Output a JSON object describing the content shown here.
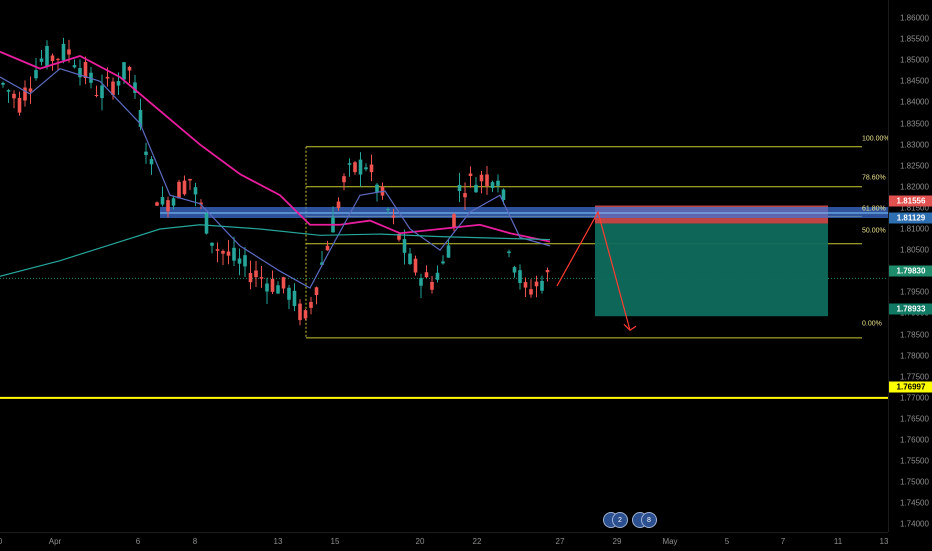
{
  "price_axis": {
    "ticks": [
      "1.86000",
      "1.85500",
      "1.85000",
      "1.84500",
      "1.84000",
      "1.83500",
      "1.83000",
      "1.82500",
      "1.82000",
      "1.81500",
      "1.81000",
      "1.80500",
      "1.80000",
      "1.79500",
      "1.79000",
      "1.78500",
      "1.78000",
      "1.77500",
      "1.77000",
      "1.76500",
      "1.76000",
      "1.75500",
      "1.75000",
      "1.74500",
      "1.74000"
    ],
    "tags": [
      {
        "text": "1.81556",
        "color": "#e0504f",
        "text_color": "#ffffff"
      },
      {
        "text": "1.81129",
        "color": "#2d6fb0",
        "text_color": "#ffffff"
      },
      {
        "text": "1.79830",
        "color": "#1e8b6b",
        "text_color": "#ffffff"
      },
      {
        "text": "1.78933",
        "color": "#117a65",
        "text_color": "#ffffff"
      },
      {
        "text": "1.76997",
        "color": "#ffff00",
        "text_color": "#000000"
      }
    ]
  },
  "time_axis": {
    "labels": [
      "0",
      "Apr",
      "6",
      "8",
      "13",
      "15",
      "20",
      "22",
      "27",
      "29",
      "May",
      "5",
      "7",
      "11",
      "13"
    ]
  },
  "fib": {
    "levels": [
      "100.00%",
      "78.60%",
      "61.80%",
      "50.00%",
      "0.00%"
    ]
  },
  "events": [
    "2",
    "8"
  ],
  "chart_data": {
    "type": "candlestick",
    "symbol": "",
    "ylim": [
      1.736,
      1.862
    ],
    "horizontal_line": 1.76997,
    "fib_levels": [
      {
        "label": "100.00%",
        "price": 1.8295
      },
      {
        "label": "78.60%",
        "price": 1.82
      },
      {
        "label": "61.80%",
        "price": 1.813
      },
      {
        "label": "50.00%",
        "price": 1.8065
      },
      {
        "label": "0.00%",
        "price": 1.7842
      }
    ],
    "short_position": {
      "entry": 1.81129,
      "stop": 1.81556,
      "target": 1.78933
    },
    "current_price": 1.7983,
    "colors": {
      "bull": "#26a69a",
      "bear": "#ef5350",
      "ma_fast": "#5c6bc0",
      "ma_slow": "#e91e9e",
      "ma_long": "#26a69a",
      "fib": "#c8c832",
      "level": "#ffff00"
    }
  }
}
